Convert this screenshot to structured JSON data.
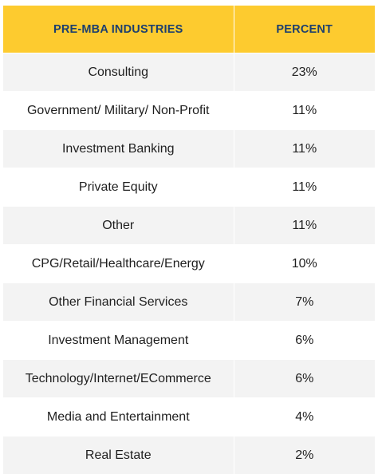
{
  "table": {
    "headers": [
      "PRE-MBA INDUSTRIES",
      "PERCENT"
    ],
    "rows": [
      {
        "industry": "Consulting",
        "percent": "23%"
      },
      {
        "industry": "Government/ Military/ Non-Profit",
        "percent": "11%"
      },
      {
        "industry": "Investment Banking",
        "percent": "11%"
      },
      {
        "industry": "Private Equity",
        "percent": "11%"
      },
      {
        "industry": "Other",
        "percent": "11%"
      },
      {
        "industry": "CPG/Retail/Healthcare/Energy",
        "percent": "10%"
      },
      {
        "industry": "Other Financial Services",
        "percent": "7%"
      },
      {
        "industry": "Investment Management",
        "percent": "6%"
      },
      {
        "industry": "Technology/Internet/ECommerce",
        "percent": "6%"
      },
      {
        "industry": "Media and Entertainment",
        "percent": "4%"
      },
      {
        "industry": "Real Estate",
        "percent": "2%"
      }
    ]
  },
  "colors": {
    "header_bg": "#fdcb2f",
    "header_text": "#1d3f6e",
    "row_alt": "#f3f3f3",
    "row_text": "#1f1f1f"
  }
}
